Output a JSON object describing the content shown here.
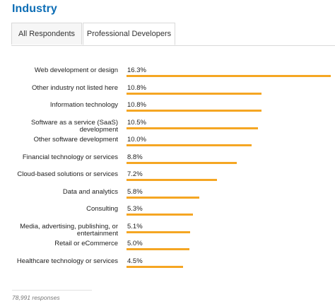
{
  "title": "Industry",
  "tabs": [
    {
      "label": "All Respondents",
      "active": false
    },
    {
      "label": "Professional Developers",
      "active": true
    }
  ],
  "colors": {
    "title": "#0c6db5",
    "bar": "#f5a623"
  },
  "footer": "78,991 responses",
  "chart_data": {
    "type": "bar",
    "orientation": "horizontal",
    "categories": [
      "Web development or design",
      "Other industry not listed here",
      "Information technology",
      "Software as a service (SaaS) development",
      "Other software development",
      "Financial technology or services",
      "Cloud-based solutions or services",
      "Data and analytics",
      "Consulting",
      "Media, advertising, publishing, or entertainment",
      "Retail or eCommerce",
      "Healthcare technology or services"
    ],
    "values": [
      16.3,
      10.8,
      10.8,
      10.5,
      10.0,
      8.8,
      7.2,
      5.8,
      5.3,
      5.1,
      5.0,
      4.5
    ],
    "value_labels": [
      "16.3%",
      "10.8%",
      "10.8%",
      "10.5%",
      "10.0%",
      "8.8%",
      "7.2%",
      "5.8%",
      "5.3%",
      "5.1%",
      "5.0%",
      "4.5%"
    ],
    "unit": "%",
    "xlim": [
      0,
      16.3
    ],
    "grid": false,
    "legend": "none"
  }
}
